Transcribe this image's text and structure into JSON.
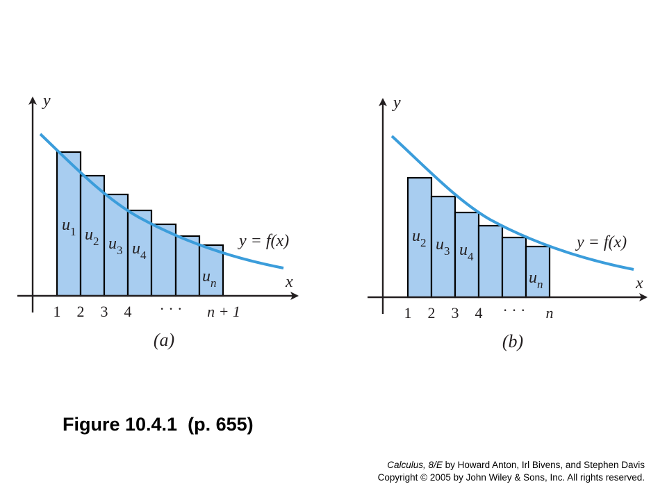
{
  "caption": {
    "label": "Figure 10.4.1",
    "page": "(p. 655)"
  },
  "credits": {
    "book_title": "Calculus, 8/E",
    "line1_rest": " by Howard Anton, Irl Bivens, and Stephen Davis",
    "line2": "Copyright © 2005 by John Wiley & Sons, Inc.  All rights reserved."
  },
  "colors": {
    "curve": "#3b9ddb",
    "bar_fill": "#a8cdf0",
    "axis": "#231f20"
  },
  "panel_a": {
    "panel_label": "(a)",
    "curve_label": "y = f(x)",
    "x_axis_label": "x",
    "y_axis_label": "y",
    "ticks": [
      "1",
      "2",
      "3",
      "4",
      "· · ·",
      "n + 1"
    ],
    "bar_labels": [
      {
        "base": "u",
        "sub": "1"
      },
      {
        "base": "u",
        "sub": "2"
      },
      {
        "base": "u",
        "sub": "3"
      },
      {
        "base": "u",
        "sub": "4"
      },
      {
        "base": "u",
        "sub": "n"
      }
    ]
  },
  "panel_b": {
    "panel_label": "(b)",
    "curve_label": "y = f(x)",
    "x_axis_label": "x",
    "y_axis_label": "y",
    "ticks": [
      "1",
      "2",
      "3",
      "4",
      "· · ·",
      "n"
    ],
    "bar_labels": [
      {
        "base": "u",
        "sub": "2"
      },
      {
        "base": "u",
        "sub": "3"
      },
      {
        "base": "u",
        "sub": "4"
      },
      {
        "base": "u",
        "sub": "n"
      }
    ]
  }
}
